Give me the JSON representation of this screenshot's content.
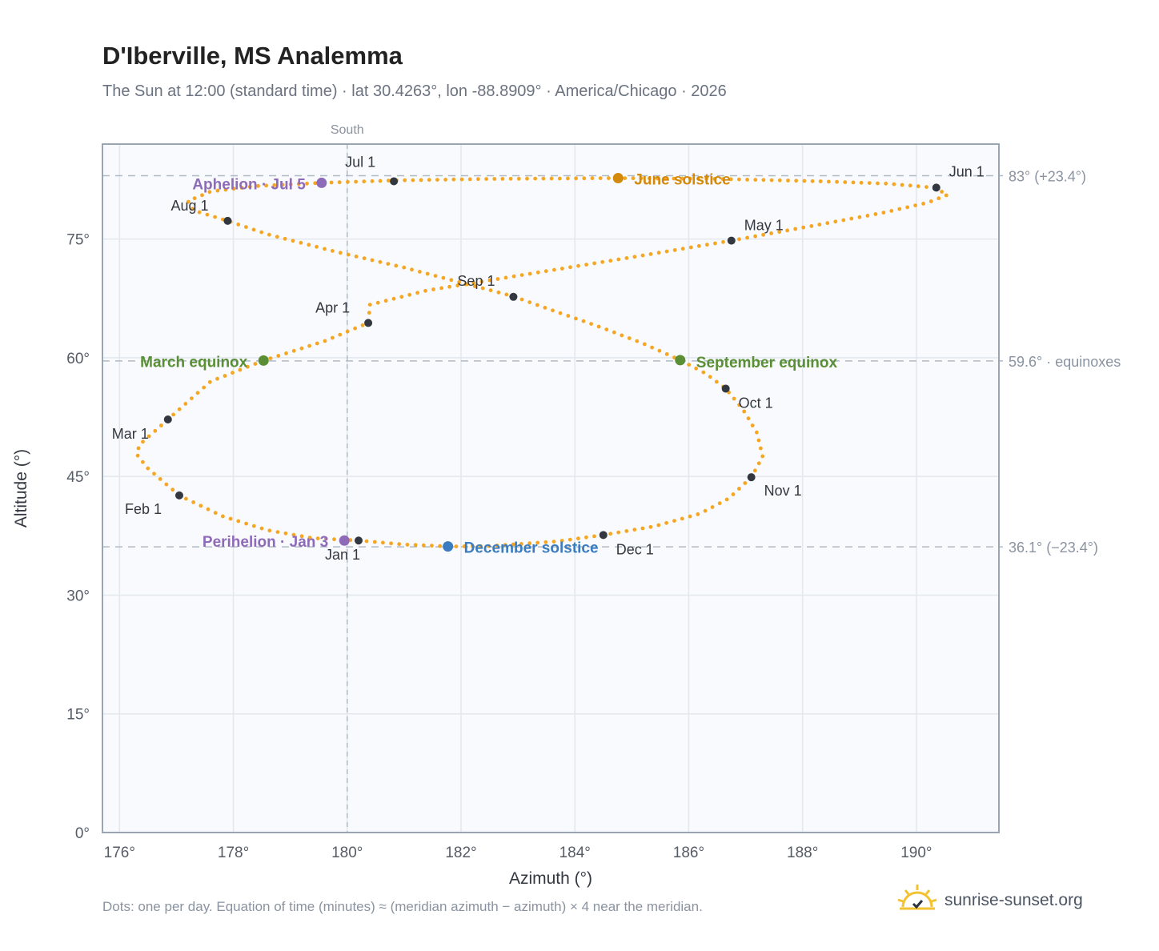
{
  "title": "D'Iberville, MS Analemma",
  "subtitle": "The Sun at 12:00 (standard time) · lat 30.4263°, lon -88.8909° · America/Chicago · 2026",
  "footnote": "Dots: one per day. Equation of time (minutes) ≈ (meridian azimuth − azimuth) × 4 near the meridian.",
  "brand": {
    "name": "sunrise-sunset.org",
    "icon": "sun-check-icon"
  },
  "colors": {
    "curve": "#f5a623",
    "month_dot": "#333840",
    "june": "#d4890a",
    "december": "#3b7cc0",
    "equinox": "#5a8f35",
    "apsis": "#8e6bb8",
    "plot_bg": "#f8fafd",
    "grid": "#e2e8ee",
    "axis_frame": "#9aa5b3",
    "ref_line": "#b0bac4"
  },
  "chart_data": {
    "type": "scatter",
    "title": "D'Iberville, MS Analemma",
    "xlabel": "Azimuth (°)",
    "ylabel": "Altitude (°)",
    "xlim": [
      175.7,
      191.45
    ],
    "ylim": [
      0,
      87
    ],
    "xticks": [
      176,
      178,
      180,
      182,
      184,
      186,
      188,
      190
    ],
    "yticks": [
      0,
      15,
      30,
      45,
      60,
      75
    ],
    "xtick_labels": [
      "176°",
      "178°",
      "180°",
      "182°",
      "184°",
      "186°",
      "188°",
      "190°"
    ],
    "ytick_labels": [
      "0°",
      "15°",
      "30°",
      "45°",
      "60°",
      "75°"
    ],
    "grid": true,
    "meridian": {
      "x": 180,
      "label": "South"
    },
    "reference_lines": [
      {
        "y": 83.0,
        "label": "83° (+23.4°)"
      },
      {
        "y": 59.6,
        "label": "59.6° · equinoxes"
      },
      {
        "y": 36.1,
        "label": "36.1° (−23.4°)"
      }
    ],
    "series": [
      {
        "path_points": [
          [
            180.2,
            36.9
          ],
          [
            181.0,
            36.4
          ],
          [
            181.77,
            36.15
          ],
          [
            182.5,
            36.2
          ],
          [
            183.7,
            36.8
          ],
          [
            184.5,
            37.6
          ],
          [
            185.4,
            38.7
          ],
          [
            186.2,
            40.3
          ],
          [
            186.7,
            42.2
          ],
          [
            187.1,
            44.9
          ],
          [
            187.3,
            47.5
          ],
          [
            187.2,
            50.5
          ],
          [
            186.95,
            53.5
          ],
          [
            186.65,
            56.1
          ],
          [
            186.3,
            58.0
          ],
          [
            185.85,
            59.7
          ],
          [
            185.2,
            61.8
          ],
          [
            184.4,
            64.0
          ],
          [
            183.6,
            66.0
          ],
          [
            182.9,
            67.8
          ],
          [
            182.0,
            69.5
          ],
          [
            181.0,
            71.4
          ],
          [
            179.8,
            73.4
          ],
          [
            178.6,
            75.6
          ],
          [
            177.9,
            77.3
          ],
          [
            177.3,
            78.6
          ],
          [
            177.2,
            79.8
          ],
          [
            177.6,
            81.0
          ],
          [
            178.4,
            81.7
          ],
          [
            179.55,
            82.1
          ],
          [
            180.8,
            82.4
          ],
          [
            182.5,
            82.6
          ],
          [
            184.76,
            82.7
          ],
          [
            186.5,
            82.6
          ],
          [
            188.3,
            82.3
          ],
          [
            189.5,
            82.0
          ],
          [
            190.3,
            81.5
          ],
          [
            190.55,
            80.6
          ],
          [
            190.2,
            79.6
          ],
          [
            189.4,
            78.3
          ],
          [
            188.2,
            76.7
          ],
          [
            186.75,
            74.8
          ],
          [
            185.0,
            72.7
          ],
          [
            183.2,
            70.6
          ],
          [
            181.4,
            68.5
          ],
          [
            180.4,
            66.7
          ],
          [
            180.37,
            64.4
          ],
          [
            179.6,
            62.1
          ],
          [
            178.53,
            59.65
          ],
          [
            177.6,
            57.0
          ],
          [
            176.85,
            52.2
          ],
          [
            176.35,
            49.0
          ],
          [
            176.3,
            47.8
          ],
          [
            176.5,
            46.0
          ],
          [
            177.05,
            42.6
          ],
          [
            177.8,
            40.0
          ],
          [
            178.6,
            38.2
          ],
          [
            179.4,
            37.2
          ],
          [
            180.2,
            36.9
          ]
        ]
      }
    ],
    "month_markers": [
      {
        "label": "Jan 1",
        "x": 180.2,
        "y": 36.9
      },
      {
        "label": "Feb 1",
        "x": 177.05,
        "y": 42.6
      },
      {
        "label": "Mar 1",
        "x": 176.85,
        "y": 52.2
      },
      {
        "label": "Apr 1",
        "x": 180.37,
        "y": 64.4
      },
      {
        "label": "May 1",
        "x": 186.75,
        "y": 74.8
      },
      {
        "label": "Jun 1",
        "x": 190.35,
        "y": 81.5
      },
      {
        "label": "Jul 1",
        "x": 180.82,
        "y": 82.3
      },
      {
        "label": "Aug 1",
        "x": 177.9,
        "y": 77.3
      },
      {
        "label": "Sep 1",
        "x": 182.92,
        "y": 67.7
      },
      {
        "label": "Oct 1",
        "x": 186.65,
        "y": 56.1
      },
      {
        "label": "Nov 1",
        "x": 187.1,
        "y": 44.9
      },
      {
        "label": "Dec 1",
        "x": 184.5,
        "y": 37.6
      }
    ],
    "events": [
      {
        "label": "June solstice",
        "x": 184.76,
        "y": 82.7,
        "color": "#d4890a"
      },
      {
        "label": "December solstice",
        "x": 181.77,
        "y": 36.15,
        "color": "#3b7cc0"
      },
      {
        "label": "March equinox",
        "x": 178.53,
        "y": 59.65,
        "color": "#5a8f35"
      },
      {
        "label": "September equinox",
        "x": 185.85,
        "y": 59.7,
        "color": "#5a8f35"
      },
      {
        "label": "Aphelion · Jul 5",
        "x": 179.55,
        "y": 82.1,
        "color": "#8e6bb8"
      },
      {
        "label": "Perihelion · Jan 3",
        "x": 179.95,
        "y": 36.9,
        "color": "#8e6bb8"
      }
    ]
  }
}
